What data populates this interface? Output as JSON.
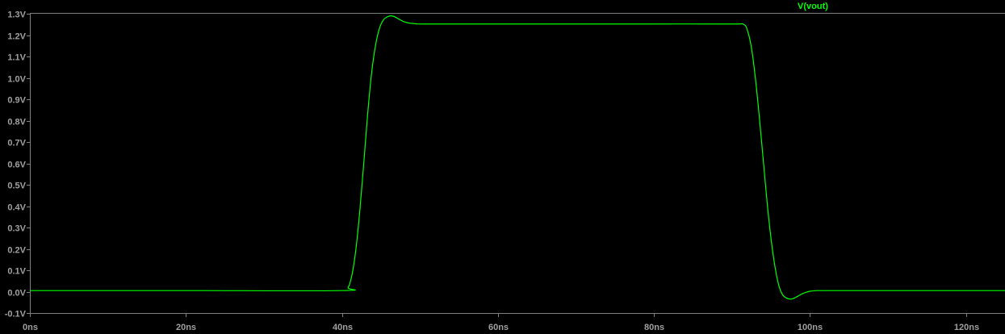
{
  "chart_data": {
    "type": "line",
    "title": "",
    "xlabel": "",
    "ylabel": "",
    "x_unit": "ns",
    "y_unit": "V",
    "xlim": [
      0,
      125
    ],
    "ylim": [
      -0.1,
      1.3
    ],
    "x_ticks": [
      0,
      20,
      40,
      60,
      80,
      100,
      120
    ],
    "x_tick_labels": [
      "0ns",
      "20ns",
      "40ns",
      "60ns",
      "80ns",
      "100ns",
      "120ns"
    ],
    "y_ticks": [
      1.3,
      1.2,
      1.1,
      1.0,
      0.9,
      0.8,
      0.7,
      0.6,
      0.5,
      0.4,
      0.3,
      0.2,
      0.1,
      0.0,
      -0.1
    ],
    "y_tick_labels": [
      "1.3V",
      "1.2V",
      "1.1V",
      "1.0V",
      "0.9V",
      "0.8V",
      "0.7V",
      "0.6V",
      "0.5V",
      "0.4V",
      "0.3V",
      "0.2V",
      "0.1V",
      "0.0V",
      "-0.1V"
    ],
    "grid": false,
    "legend_position": "top-right",
    "colors": {
      "background": "#000000",
      "axes": "#808080",
      "labels": "#a0a0a0",
      "trace": "#00ff00"
    },
    "series": [
      {
        "name": "V(vout)",
        "x": [
          0,
          20,
          40,
          40.8,
          41.3,
          41.8,
          42.3,
          42.8,
          43.3,
          43.8,
          44.3,
          44.8,
          45.3,
          45.8,
          46.3,
          46.8,
          47.3,
          47.8,
          48.5,
          49.5,
          50.5,
          60,
          70,
          80,
          90,
          91.5,
          92.0,
          92.5,
          93.0,
          93.5,
          94.0,
          94.5,
          95.0,
          95.5,
          96.0,
          96.5,
          97.0,
          97.5,
          98.0,
          98.5,
          99.0,
          99.5,
          100.0,
          101.0,
          102.0,
          110,
          120,
          125
        ],
        "y": [
          0.005,
          0.005,
          0.005,
          0.02,
          0.08,
          0.2,
          0.38,
          0.6,
          0.83,
          1.02,
          1.15,
          1.23,
          1.27,
          1.285,
          1.29,
          1.285,
          1.275,
          1.265,
          1.257,
          1.253,
          1.252,
          1.252,
          1.252,
          1.252,
          1.252,
          1.25,
          1.22,
          1.14,
          1.0,
          0.82,
          0.62,
          0.42,
          0.25,
          0.12,
          0.03,
          -0.015,
          -0.03,
          -0.035,
          -0.03,
          -0.02,
          -0.01,
          -0.003,
          0.002,
          0.005,
          0.005,
          0.005,
          0.005,
          0.005
        ]
      }
    ]
  }
}
